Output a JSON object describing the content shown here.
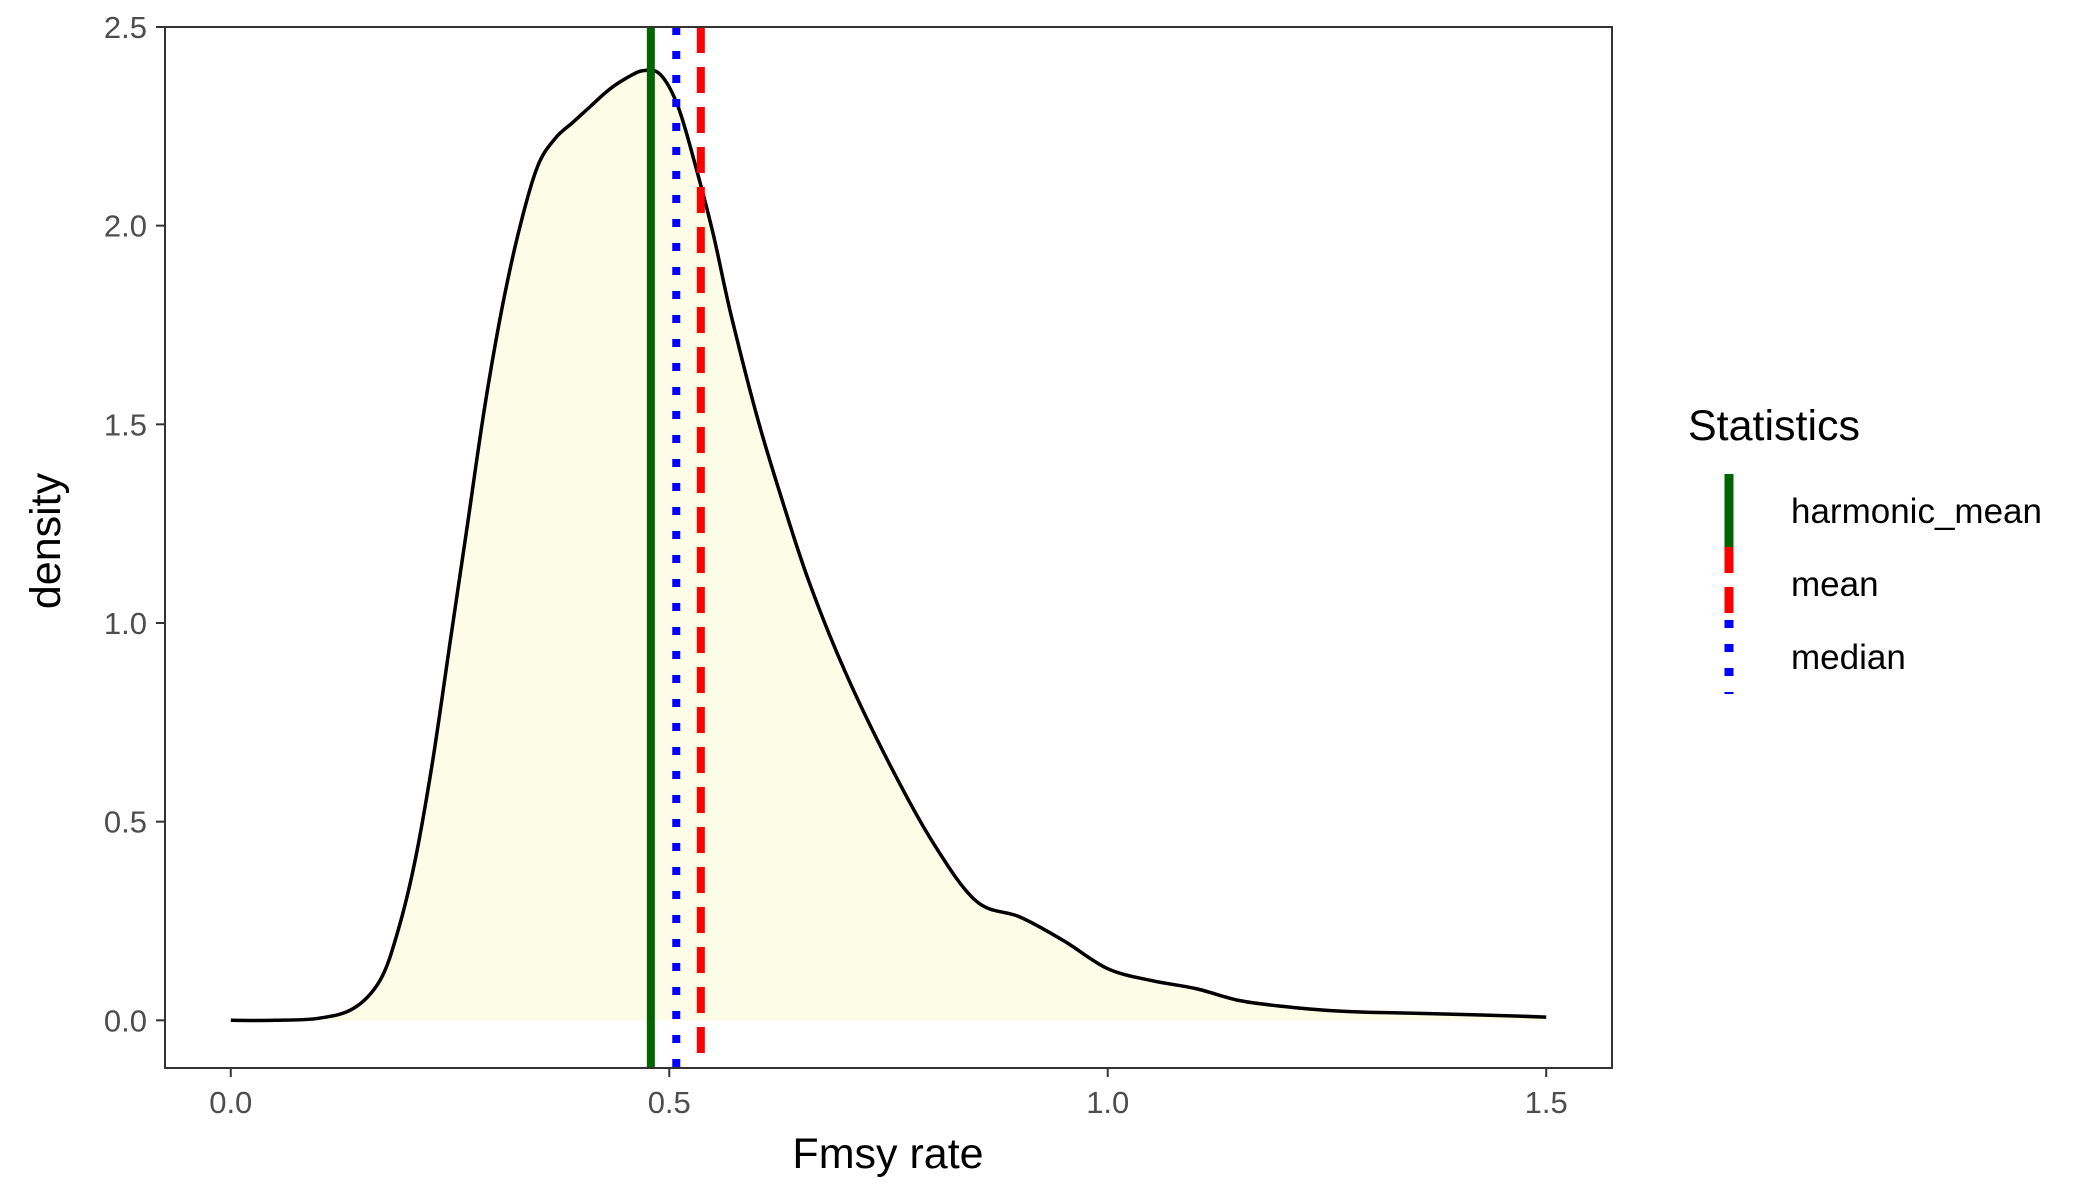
{
  "chart_data": {
    "type": "area",
    "title": "",
    "xlabel": "Fmsy rate",
    "ylabel": "density",
    "xlim": [
      -0.075,
      1.575
    ],
    "ylim": [
      -0.12,
      2.5
    ],
    "x_ticks": [
      0.0,
      0.5,
      1.0,
      1.5
    ],
    "x_tick_labels": [
      "0.0",
      "0.5",
      "1.0",
      "1.5"
    ],
    "y_ticks": [
      0.0,
      0.5,
      1.0,
      1.5,
      2.0,
      2.5
    ],
    "y_tick_labels": [
      "0.0",
      "0.5",
      "1.0",
      "1.5",
      "2.0",
      "2.5"
    ],
    "grid": false,
    "density_fill": "#fdfce6",
    "density_line": "#000000",
    "density": {
      "x": [
        0.0,
        0.05,
        0.1,
        0.14,
        0.17,
        0.19,
        0.21,
        0.23,
        0.25,
        0.27,
        0.29,
        0.31,
        0.33,
        0.35,
        0.37,
        0.39,
        0.41,
        0.43,
        0.45,
        0.47,
        0.49,
        0.51,
        0.53,
        0.55,
        0.57,
        0.6,
        0.63,
        0.66,
        0.7,
        0.75,
        0.8,
        0.85,
        0.9,
        0.95,
        1.0,
        1.05,
        1.1,
        1.15,
        1.2,
        1.25,
        1.3,
        1.35,
        1.4,
        1.45,
        1.5
      ],
      "y": [
        0.0,
        0.0,
        0.005,
        0.03,
        0.1,
        0.22,
        0.4,
        0.65,
        0.95,
        1.25,
        1.55,
        1.8,
        2.0,
        2.15,
        2.22,
        2.26,
        2.3,
        2.34,
        2.37,
        2.39,
        2.38,
        2.3,
        2.15,
        1.98,
        1.78,
        1.52,
        1.3,
        1.1,
        0.88,
        0.65,
        0.45,
        0.3,
        0.26,
        0.2,
        0.13,
        0.1,
        0.08,
        0.05,
        0.035,
        0.025,
        0.02,
        0.018,
        0.015,
        0.012,
        0.008
      ]
    },
    "legend": {
      "title": "Statistics",
      "position": "right",
      "items": [
        {
          "name": "harmonic_mean",
          "color": "#006400",
          "linetype": "solid",
          "value": 0.479
        },
        {
          "name": "mean",
          "color": "#ff0000",
          "linetype": "dashed",
          "value": 0.536
        },
        {
          "name": "median",
          "color": "#0000ff",
          "linetype": "dotted",
          "value": 0.508
        }
      ]
    }
  }
}
